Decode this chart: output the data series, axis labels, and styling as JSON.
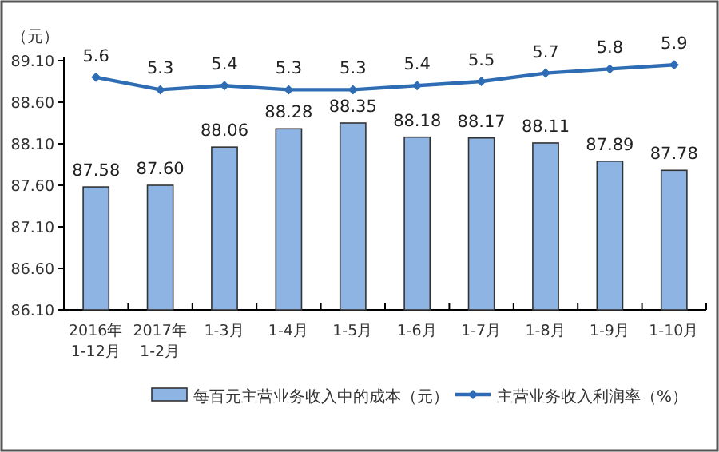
{
  "chart_data": {
    "type": "bar",
    "ylabel": "（元）",
    "categories": [
      "2016年\n1-12月",
      "2017年\n1-2月",
      "1-3月",
      "1-4月",
      "1-5月",
      "1-6月",
      "1-7月",
      "1-8月",
      "1-9月",
      "1-10月"
    ],
    "series": [
      {
        "name": "每百元主营业务收入中的成本（元）",
        "color": "#8db4e2",
        "values": [
          87.58,
          87.6,
          88.06,
          88.28,
          88.35,
          88.18,
          88.17,
          88.11,
          87.89,
          87.78
        ],
        "value_labels": [
          "87.58",
          "87.60",
          "88.06",
          "88.28",
          "88.35",
          "88.18",
          "88.17",
          "88.11",
          "87.89",
          "87.78"
        ]
      },
      {
        "name": "主营业务收入利润率（%）",
        "type": "line",
        "axis": "y2",
        "color": "#2e6db4",
        "values": [
          5.6,
          5.3,
          5.4,
          5.3,
          5.3,
          5.4,
          5.5,
          5.7,
          5.8,
          5.9
        ],
        "value_labels": [
          "5.6",
          "5.3",
          "5.4",
          "5.3",
          "5.3",
          "5.4",
          "5.5",
          "5.7",
          "5.8",
          "5.9"
        ]
      }
    ],
    "ylim": [
      86.1,
      89.1
    ],
    "yticks": [
      {
        "value": 86.1,
        "label": "86.10"
      },
      {
        "value": 86.6,
        "label": "86.60"
      },
      {
        "value": 87.1,
        "label": "87.10"
      },
      {
        "value": 87.6,
        "label": "87.60"
      },
      {
        "value": 88.1,
        "label": "88.10"
      },
      {
        "value": 88.6,
        "label": "88.60"
      },
      {
        "value": 89.1,
        "label": "89.10"
      }
    ],
    "y2lim": [
      0,
      6
    ],
    "legend": "bottom",
    "marker": "diamond",
    "grid": false
  }
}
